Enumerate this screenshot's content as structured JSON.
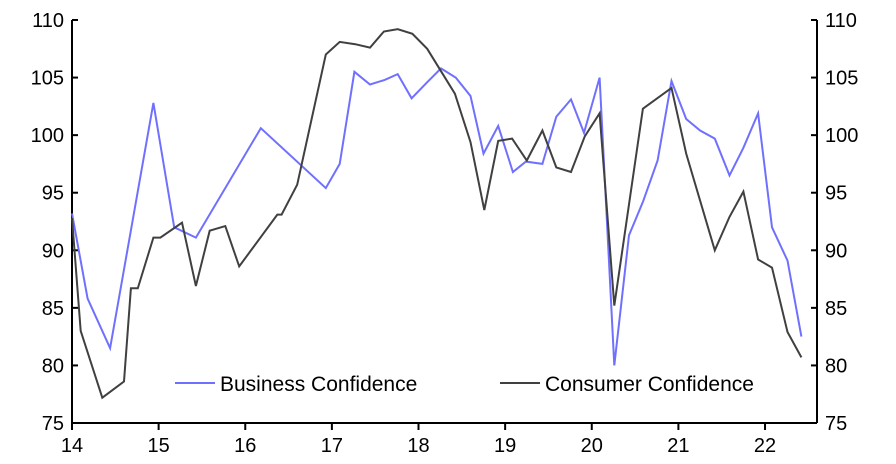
{
  "chart_data": {
    "type": "line",
    "title": "",
    "xlabel": "",
    "ylabel": "",
    "xlim": [
      14,
      22.6
    ],
    "ylim": [
      75,
      110
    ],
    "grid": false,
    "legend_placement": "bottom",
    "x_ticks": [
      "14",
      "15",
      "16",
      "17",
      "18",
      "19",
      "20",
      "21",
      "22"
    ],
    "y_ticks_left": [
      "75",
      "80",
      "85",
      "90",
      "95",
      "100",
      "105",
      "110"
    ],
    "y_ticks_right": [
      "75",
      "80",
      "85",
      "90",
      "95",
      "100",
      "105",
      "110"
    ],
    "series": [
      {
        "name": "Business Confidence",
        "color": "#7070ff",
        "x": [
          14.0,
          14.18,
          14.44,
          14.94,
          15.18,
          15.43,
          16.18,
          16.93,
          17.09,
          17.26,
          17.44,
          17.61,
          17.76,
          17.92,
          18.1,
          18.26,
          18.43,
          18.6,
          18.75,
          18.92,
          19.09,
          19.24,
          19.43,
          19.59,
          19.76,
          19.91,
          20.09,
          20.26,
          20.43,
          20.59,
          20.76,
          20.92,
          21.09,
          21.25,
          21.42,
          21.59,
          21.75,
          21.92,
          22.08,
          22.26,
          22.42
        ],
        "values": [
          93.2,
          85.8,
          81.5,
          102.8,
          92.0,
          91.1,
          100.6,
          95.4,
          97.5,
          105.5,
          104.4,
          104.8,
          105.3,
          103.2,
          104.6,
          105.8,
          105.0,
          103.4,
          98.4,
          100.8,
          96.8,
          97.7,
          97.5,
          101.6,
          103.1,
          100.2,
          105.0,
          80.0,
          91.3,
          94.2,
          97.8,
          104.7,
          101.4,
          100.4,
          99.7,
          96.5,
          98.9,
          101.9,
          92.0,
          89.1,
          82.5
        ]
      },
      {
        "name": "Consumer Confidence",
        "color": "#404040",
        "x": [
          14.0,
          14.1,
          14.35,
          14.6,
          14.68,
          14.76,
          14.94,
          15.02,
          15.27,
          15.43,
          15.59,
          15.77,
          15.93,
          16.37,
          16.42,
          16.6,
          16.93,
          17.09,
          17.27,
          17.44,
          17.6,
          17.76,
          17.93,
          18.1,
          18.42,
          18.6,
          18.76,
          18.92,
          19.08,
          19.25,
          19.43,
          19.59,
          19.76,
          19.92,
          20.09,
          20.26,
          20.59,
          20.92,
          21.09,
          21.42,
          21.59,
          21.75,
          21.92,
          22.08,
          22.26,
          22.42
        ],
        "values": [
          92.8,
          83.0,
          77.2,
          78.6,
          86.7,
          86.7,
          91.1,
          91.1,
          92.4,
          86.9,
          91.7,
          92.1,
          88.6,
          93.1,
          93.1,
          95.7,
          107.0,
          108.1,
          107.9,
          107.6,
          109.0,
          109.2,
          108.8,
          107.5,
          103.6,
          99.4,
          93.5,
          99.5,
          99.7,
          97.8,
          100.4,
          97.2,
          96.8,
          99.9,
          101.9,
          85.2,
          102.3,
          104.1,
          98.4,
          90.0,
          92.9,
          95.1,
          89.2,
          88.5,
          82.9,
          80.7
        ]
      }
    ]
  }
}
